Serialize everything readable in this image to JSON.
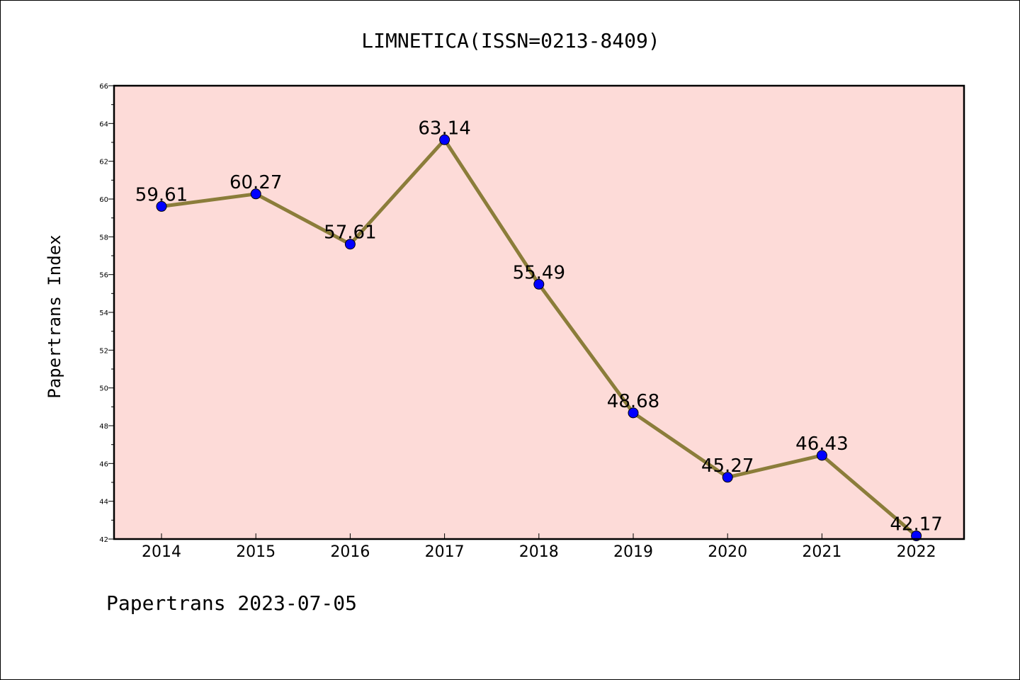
{
  "chart_data": {
    "type": "line",
    "title": "LIMNETICA(ISSN=0213-8409)",
    "xlabel": "",
    "ylabel": "Papertrans Index",
    "categories": [
      "2014",
      "2015",
      "2016",
      "2017",
      "2018",
      "2019",
      "2020",
      "2021",
      "2022"
    ],
    "series": [
      {
        "values": [
          59.61,
          60.27,
          57.61,
          63.14,
          55.49,
          48.68,
          45.27,
          46.43,
          42.17
        ],
        "labels": [
          "59.61",
          "60.27",
          "57.61",
          "63.14",
          "55.49",
          "48.68",
          "45.27",
          "46.43",
          "42.17"
        ]
      }
    ],
    "ylim": [
      42,
      66
    ],
    "yticks": [
      "42",
      "44",
      "46",
      "48",
      "50",
      "52",
      "54",
      "56",
      "58",
      "60",
      "62",
      "64",
      "66"
    ],
    "grid": false,
    "legend": "none",
    "colors": {
      "plot_background": "#fddbd8",
      "line": "#8b7d3a",
      "marker": "#0000ff",
      "axis": "#000000"
    }
  },
  "footer": "Papertrans 2023-07-05"
}
